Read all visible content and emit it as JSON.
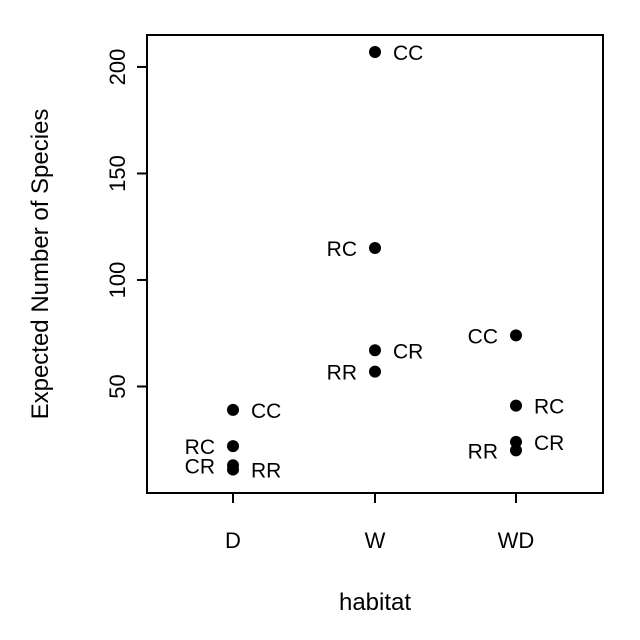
{
  "chart_data": {
    "type": "scatter",
    "title": "",
    "xlabel": "habitat",
    "ylabel": "Expected Number of Species",
    "categories": [
      "D",
      "W",
      "WD"
    ],
    "ylim": [
      0,
      215
    ],
    "y_ticks": [
      50,
      100,
      150,
      200
    ],
    "grid": false,
    "points": [
      {
        "category": "D",
        "y": 39,
        "label": "CC",
        "label_side": "right"
      },
      {
        "category": "D",
        "y": 22,
        "label": "RC",
        "label_side": "left"
      },
      {
        "category": "D",
        "y": 13,
        "label": "CR",
        "label_side": "left"
      },
      {
        "category": "D",
        "y": 11,
        "label": "RR",
        "label_side": "right"
      },
      {
        "category": "W",
        "y": 207,
        "label": "CC",
        "label_side": "right"
      },
      {
        "category": "W",
        "y": 115,
        "label": "RC",
        "label_side": "left"
      },
      {
        "category": "W",
        "y": 67,
        "label": "CR",
        "label_side": "right"
      },
      {
        "category": "W",
        "y": 57,
        "label": "RR",
        "label_side": "left"
      },
      {
        "category": "WD",
        "y": 74,
        "label": "CC",
        "label_side": "left"
      },
      {
        "category": "WD",
        "y": 41,
        "label": "RC",
        "label_side": "right"
      },
      {
        "category": "WD",
        "y": 24,
        "label": "CR",
        "label_side": "right"
      },
      {
        "category": "WD",
        "y": 20,
        "label": "RR",
        "label_side": "left"
      }
    ]
  }
}
